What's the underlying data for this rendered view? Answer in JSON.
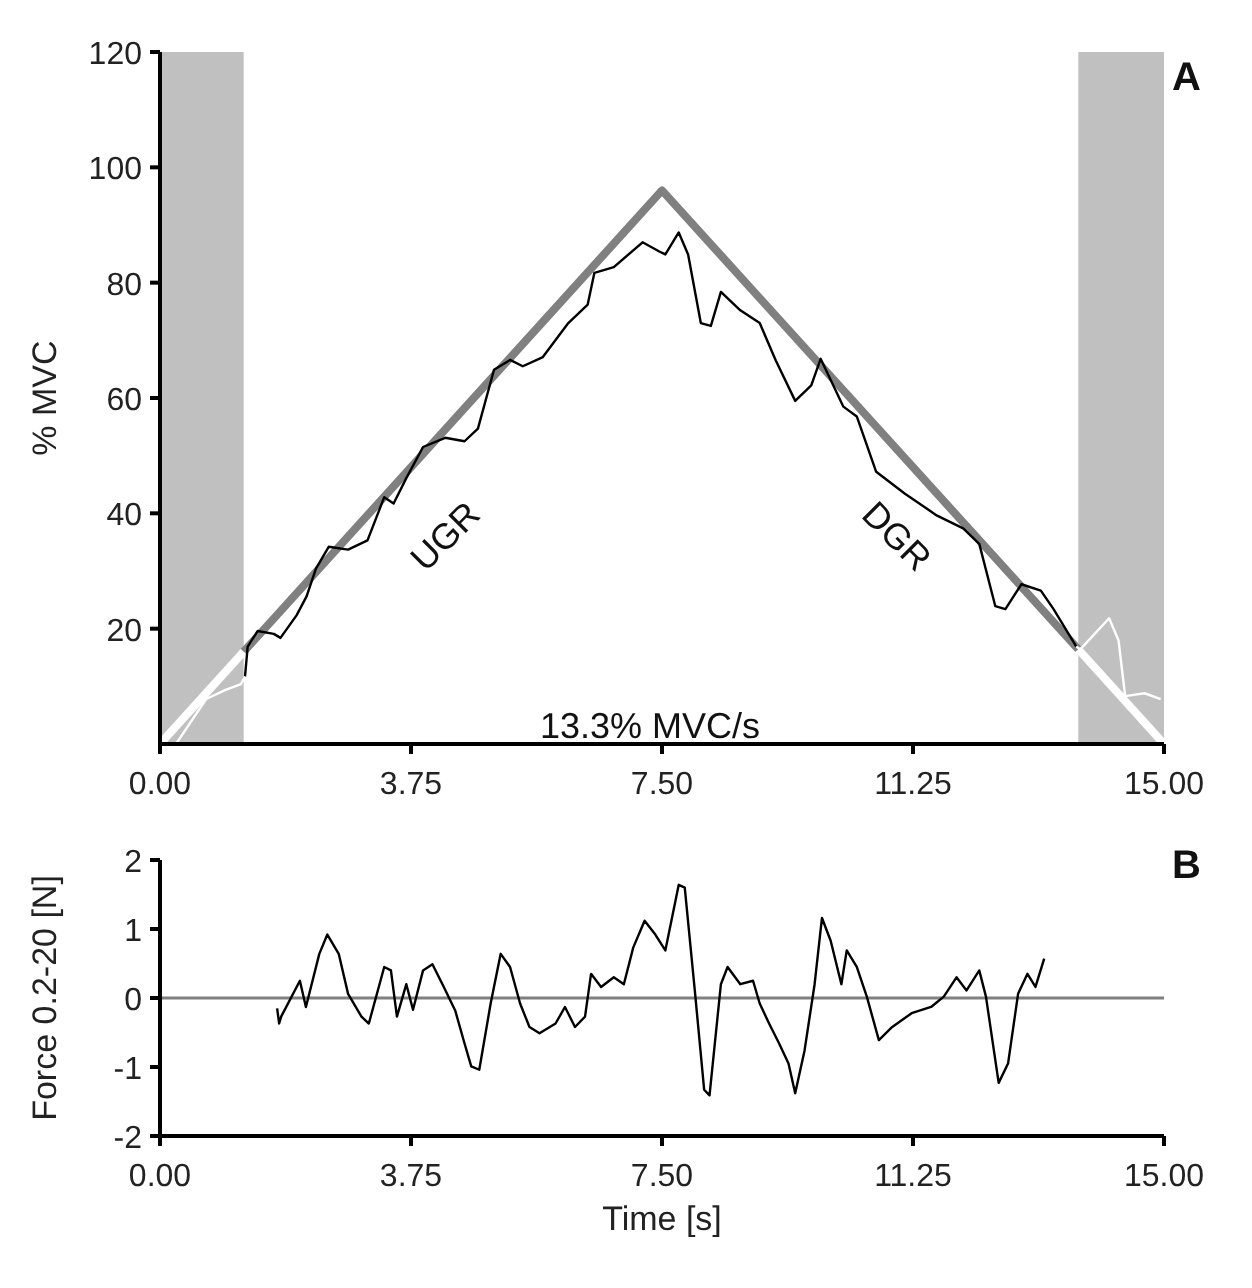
{
  "chart_data": [
    {
      "type": "line",
      "ylabel": "% MVC",
      "xlim": [
        0,
        15
      ],
      "ylim": [
        0,
        120
      ],
      "xticks": [
        {
          "value": 0,
          "label": "0.00"
        },
        {
          "value": 3.75,
          "label": "3.75"
        },
        {
          "value": 7.5,
          "label": "7.50"
        },
        {
          "value": 11.25,
          "label": "11.25"
        },
        {
          "value": 15,
          "label": "15.00"
        }
      ],
      "yticks": [
        20,
        40,
        60,
        80,
        100,
        120
      ],
      "bands": [
        {
          "axis": "x",
          "from": 0,
          "to": 1.25,
          "color": "#c0c0c0"
        },
        {
          "axis": "x",
          "from": 13.72,
          "to": 15,
          "color": "#c0c0c0"
        }
      ],
      "series": [
        {
          "color": "#808080",
          "x": [
            1.25,
            7.5,
            13.72
          ],
          "values": [
            16,
            96,
            16.4
          ]
        },
        {
          "color": "#ffffff",
          "x": [
            0,
            1.25
          ],
          "values": [
            0,
            16
          ]
        },
        {
          "color": "#ffffff",
          "x": [
            13.72,
            15
          ],
          "values": [
            16.4,
            0
          ]
        },
        {
          "color": "#000000",
          "x": [
            1.27,
            1.31,
            1.46,
            1.7,
            1.8,
            2.04,
            2.19,
            2.33,
            2.52,
            2.81,
            3.1,
            3.35,
            3.49,
            3.68,
            3.93,
            4.26,
            4.55,
            4.75,
            4.99,
            5.23,
            5.42,
            5.72,
            6.1,
            6.39,
            6.49,
            6.78,
            7.21,
            7.46,
            7.55,
            7.75,
            7.89,
            8.08,
            8.23,
            8.38,
            8.67,
            8.96,
            9.2,
            9.49,
            9.73,
            9.87,
            10.21,
            10.41,
            10.7,
            11.13,
            11.61,
            12.0,
            12.24,
            12.48,
            12.63,
            12.87,
            13.16,
            13.35,
            13.69
          ],
          "values": [
            11.7,
            16.9,
            19.6,
            19.1,
            18.4,
            22.3,
            25.6,
            30.4,
            34.2,
            33.7,
            35.3,
            42.8,
            41.7,
            46.1,
            51.5,
            53.1,
            52.5,
            54.7,
            64.9,
            66.6,
            65.5,
            67.1,
            73,
            76.2,
            81.7,
            82.7,
            87,
            85.4,
            84.9,
            88.7,
            84.9,
            73,
            72.5,
            78.4,
            75.2,
            73,
            66.5,
            59.5,
            62.2,
            66.8,
            58.5,
            56.8,
            47.2,
            43.4,
            39.6,
            37.4,
            34.7,
            23.9,
            23.4,
            27.7,
            26.6,
            23.4,
            16.9
          ]
        },
        {
          "color": "#ffffff",
          "x": [
            0.25,
            0.69,
            0.98,
            1.21,
            1.27
          ],
          "values": [
            0.2,
            7.8,
            9.4,
            10.4,
            11.7
          ]
        },
        {
          "color": "#ffffff",
          "x": [
            13.69,
            13.75,
            14.18,
            14.32,
            14.42,
            14.71,
            14.95
          ],
          "values": [
            16.9,
            16.4,
            21.8,
            18,
            8.3,
            8.8,
            7.8
          ]
        }
      ],
      "annotations": [
        "UGR",
        "DGR",
        "13.3% MVC/s",
        "A"
      ]
    },
    {
      "type": "line",
      "xlabel": "Time [s]",
      "ylabel": "Force 0.2-20 [N]",
      "xlim": [
        0,
        15
      ],
      "ylim": [
        -2,
        2
      ],
      "xticks": [
        {
          "value": 0,
          "label": "0.00"
        },
        {
          "value": 3.75,
          "label": "3.75"
        },
        {
          "value": 7.5,
          "label": "7.50"
        },
        {
          "value": 11.25,
          "label": "11.25"
        },
        {
          "value": 15,
          "label": "15.00"
        }
      ],
      "yticks": [
        -2,
        -1,
        0,
        1,
        2
      ],
      "ref_lines": [
        {
          "axis": "y",
          "value": 0,
          "color": "#808080"
        }
      ],
      "series": [
        {
          "color": "#000000",
          "x": [
            1.75,
            1.78,
            1.81,
            2.09,
            2.18,
            2.38,
            2.5,
            2.67,
            2.81,
            3.01,
            3.12,
            3.35,
            3.45,
            3.54,
            3.68,
            3.78,
            3.93,
            4.07,
            4.22,
            4.41,
            4.55,
            4.65,
            4.77,
            4.94,
            5.09,
            5.23,
            5.38,
            5.52,
            5.67,
            5.91,
            6.05,
            6.2,
            6.35,
            6.44,
            6.59,
            6.78,
            6.93,
            7.07,
            7.24,
            7.4,
            7.55,
            7.75,
            7.84,
            7.99,
            8.13,
            8.21,
            8.38,
            8.48,
            8.67,
            8.86,
            8.96,
            9.1,
            9.25,
            9.39,
            9.49,
            9.63,
            9.78,
            9.89,
            10.02,
            10.18,
            10.26,
            10.41,
            10.56,
            10.74,
            10.94,
            11.23,
            11.52,
            11.71,
            11.9,
            12.05,
            12.24,
            12.34,
            12.53,
            12.67,
            12.82,
            12.96,
            13.08,
            13.21
          ],
          "values": [
            -0.15,
            -0.37,
            -0.27,
            0.25,
            -0.13,
            0.64,
            0.92,
            0.64,
            0.06,
            -0.27,
            -0.37,
            0.45,
            0.4,
            -0.27,
            0.2,
            -0.17,
            0.4,
            0.49,
            0.2,
            -0.18,
            -0.66,
            -0.99,
            -1.04,
            -0.08,
            0.64,
            0.45,
            -0.08,
            -0.42,
            -0.51,
            -0.37,
            -0.13,
            -0.42,
            -0.27,
            0.35,
            0.16,
            0.3,
            0.2,
            0.73,
            1.12,
            0.92,
            0.69,
            1.64,
            1.6,
            0.11,
            -1.33,
            -1.41,
            0.2,
            0.45,
            0.2,
            0.25,
            -0.08,
            -0.37,
            -0.66,
            -0.95,
            -1.38,
            -0.76,
            0.2,
            1.16,
            0.83,
            0.2,
            0.69,
            0.45,
            0.02,
            -0.61,
            -0.42,
            -0.22,
            -0.13,
            0.02,
            0.3,
            0.11,
            0.4,
            0.02,
            -1.23,
            -0.95,
            0.06,
            0.35,
            0.16,
            0.57
          ]
        }
      ],
      "annotations": [
        "B"
      ]
    }
  ]
}
